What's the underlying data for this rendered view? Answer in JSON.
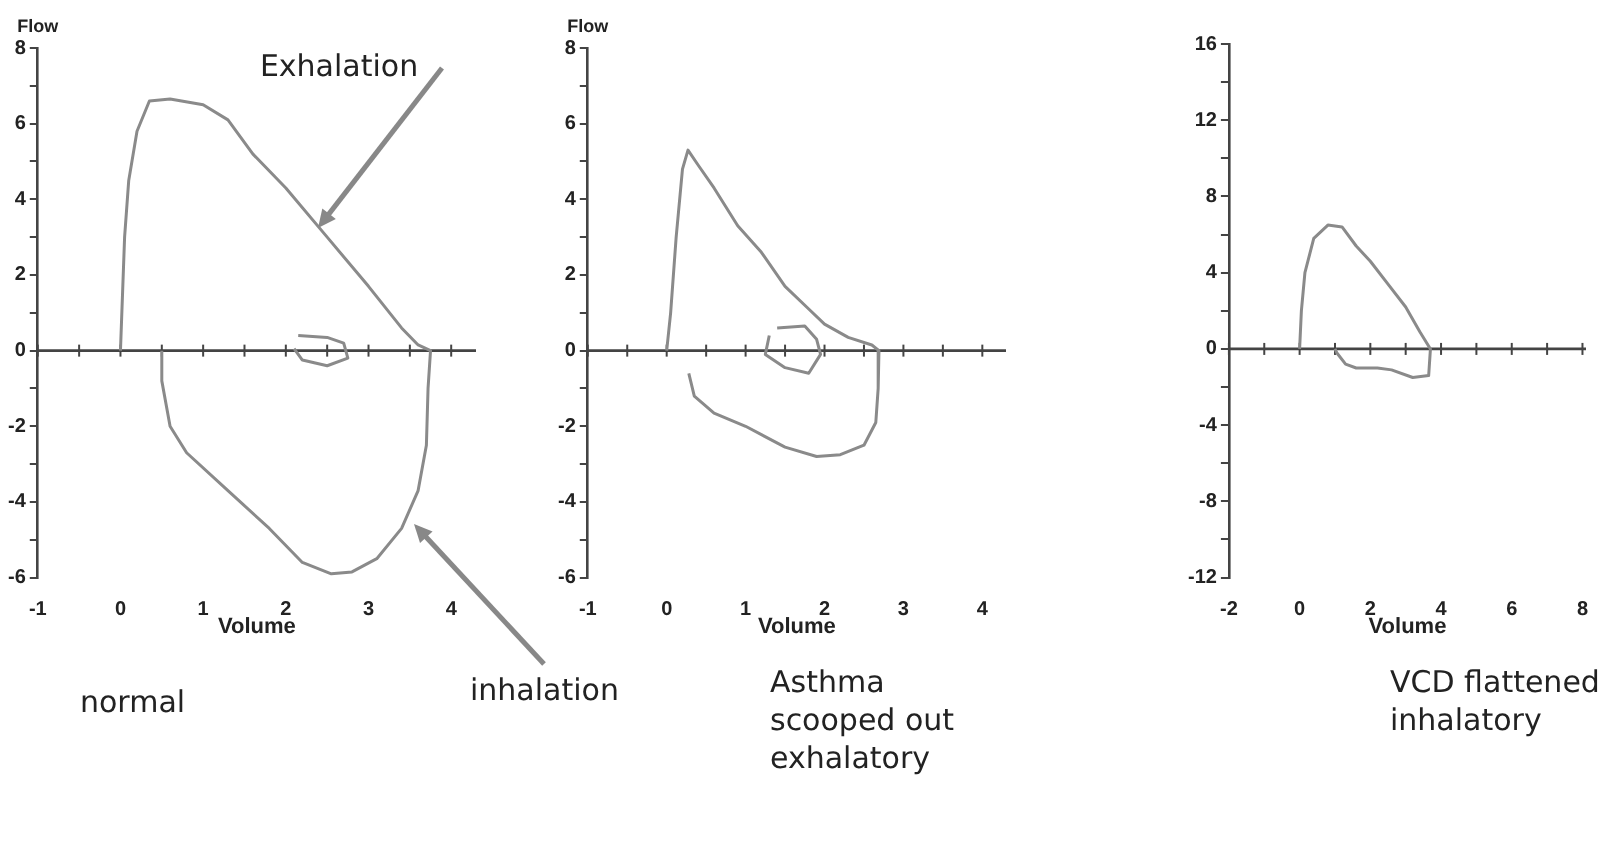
{
  "chart_data": [
    {
      "type": "line",
      "xlabel": "Volume",
      "ylabel": "Flow",
      "xlim": [
        -1,
        4.3
      ],
      "ylim": [
        -6,
        8
      ],
      "xticks": [
        -1,
        {
          "value": -0.5,
          "label": null
        },
        0,
        {
          "value": 0.5,
          "label": null
        },
        1,
        {
          "value": 1.5,
          "label": null
        },
        2,
        {
          "value": 2.5,
          "label": null
        },
        3,
        {
          "value": 3.5,
          "label": null
        },
        4
      ],
      "yticks": [
        -6,
        {
          "value": -5,
          "label": null
        },
        -4,
        {
          "value": -3,
          "label": null
        },
        -2,
        {
          "value": -1,
          "label": null
        },
        0,
        {
          "value": 1,
          "label": null
        },
        2,
        {
          "value": 3,
          "label": null
        },
        4,
        {
          "value": 5,
          "label": null
        },
        6,
        {
          "value": 7,
          "label": null
        },
        8
      ],
      "series": [
        {
          "color": "#8a8a8a",
          "x": [
            0,
            0.05,
            0.1,
            0.2,
            0.35,
            0.6,
            1.0,
            1.3,
            1.6,
            2.0,
            2.5,
            3.0,
            3.4,
            3.6,
            3.75,
            3.72,
            3.7,
            3.6,
            3.4,
            3.1,
            2.8,
            2.55,
            2.2,
            1.8,
            1.3,
            0.8,
            0.6,
            0.5,
            0.5
          ],
          "values": [
            0,
            3,
            4.5,
            5.8,
            6.6,
            6.65,
            6.5,
            6.1,
            5.2,
            4.3,
            3.0,
            1.7,
            0.6,
            0.15,
            0,
            -1,
            -2.5,
            -3.7,
            -4.7,
            -5.5,
            -5.85,
            -5.9,
            -5.6,
            -4.7,
            -3.7,
            -2.7,
            -2.0,
            -0.8,
            0
          ]
        },
        {
          "color": "#8a8a8a",
          "x": [
            2.15,
            2.5,
            2.7,
            2.75,
            2.5,
            2.2,
            2.1
          ],
          "values": [
            0.4,
            0.35,
            0.2,
            -0.2,
            -0.4,
            -0.25,
            0.05
          ]
        }
      ],
      "annotations": [
        {
          "text": "Exhalation",
          "x": 2.4,
          "y": 3.26
        },
        {
          "text": "inhalation",
          "x": 3.55,
          "y": -4.6
        },
        "normal"
      ]
    },
    {
      "type": "line",
      "xlabel": "Volume",
      "ylabel": "Flow",
      "xlim": [
        -1,
        4.3
      ],
      "ylim": [
        -6,
        8
      ],
      "xticks": [
        -1,
        {
          "value": -0.5,
          "label": null
        },
        0,
        {
          "value": 0.5,
          "label": null
        },
        1,
        {
          "value": 1.5,
          "label": null
        },
        2,
        {
          "value": 2.5,
          "label": null
        },
        3,
        {
          "value": 3.5,
          "label": null
        },
        4
      ],
      "yticks": [
        -6,
        {
          "value": -5,
          "label": null
        },
        -4,
        {
          "value": -3,
          "label": null
        },
        -2,
        {
          "value": -1,
          "label": null
        },
        0,
        {
          "value": 1,
          "label": null
        },
        2,
        {
          "value": 3,
          "label": null
        },
        4,
        {
          "value": 5,
          "label": null
        },
        6,
        {
          "value": 7,
          "label": null
        },
        8
      ],
      "series": [
        {
          "color": "#8a8a8a",
          "x": [
            0,
            0.05,
            0.12,
            0.2,
            0.27,
            0.4,
            0.6,
            0.9,
            1.2,
            1.5,
            1.8,
            2.0,
            2.3,
            2.6,
            2.69,
            2.68,
            2.65,
            2.5,
            2.2,
            1.9,
            1.5,
            1.0,
            0.6,
            0.35,
            0.28
          ],
          "values": [
            0,
            1,
            3,
            4.8,
            5.3,
            4.9,
            4.3,
            3.3,
            2.6,
            1.7,
            1.1,
            0.7,
            0.35,
            0.15,
            0,
            -1,
            -1.9,
            -2.5,
            -2.75,
            -2.8,
            -2.55,
            -2.0,
            -1.65,
            -1.2,
            -0.6
          ]
        },
        {
          "color": "#8a8a8a",
          "x": [
            1.4,
            1.75,
            1.9,
            1.95,
            1.8,
            1.5,
            1.25,
            1.3
          ],
          "values": [
            0.6,
            0.65,
            0.3,
            -0.1,
            -0.6,
            -0.45,
            -0.1,
            0.4
          ]
        }
      ],
      "annotations": [
        "Asthma scooped out exhalatory"
      ]
    },
    {
      "type": "line",
      "xlabel": "Volume",
      "xlim": [
        -2,
        8.1
      ],
      "ylim": [
        -12,
        16
      ],
      "xticks": [
        -2,
        {
          "value": -1,
          "label": null
        },
        0,
        {
          "value": 1,
          "label": null
        },
        2,
        {
          "value": 3,
          "label": null
        },
        4,
        {
          "value": 5,
          "label": null
        },
        6,
        {
          "value": 7,
          "label": null
        },
        8
      ],
      "yticks": [
        -12,
        {
          "value": -10,
          "label": null
        },
        -8,
        {
          "value": -6,
          "label": null
        },
        -4,
        {
          "value": -2,
          "label": null
        },
        0,
        {
          "value": 2,
          "label": null
        },
        4,
        {
          "value": 6,
          "label": null
        },
        8,
        {
          "value": 10,
          "label": null
        },
        12,
        {
          "value": 14,
          "label": null
        },
        16
      ],
      "series": [
        {
          "color": "#8a8a8a",
          "x": [
            0,
            0.05,
            0.15,
            0.4,
            0.8,
            1.2,
            1.6,
            2.0,
            2.5,
            3.0,
            3.4,
            3.7,
            3.65,
            3.2,
            2.6,
            2.2,
            1.6,
            1.3,
            1.05,
            1.0
          ],
          "values": [
            0,
            2,
            4,
            5.8,
            6.5,
            6.4,
            5.4,
            4.6,
            3.4,
            2.2,
            0.9,
            0,
            -1.4,
            -1.5,
            -1.1,
            -1.0,
            -1.0,
            -0.8,
            -0.2,
            0
          ]
        }
      ],
      "annotations": [
        "VCD flattened inhalatory"
      ]
    }
  ]
}
